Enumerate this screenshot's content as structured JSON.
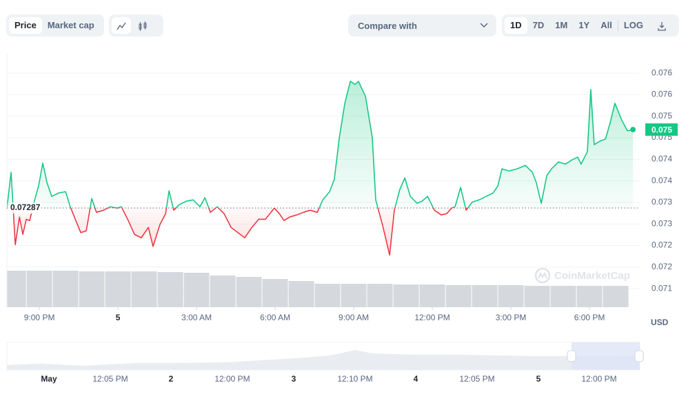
{
  "toolbar": {
    "tabs": [
      "Price",
      "Market cap"
    ],
    "compare": "Compare with",
    "ranges": [
      "1D",
      "7D",
      "1M",
      "1Y",
      "All"
    ],
    "scale": "LOG"
  },
  "watermark": "CoinMarketCap",
  "chart_data": {
    "type": "line",
    "currency": "USD",
    "xlim": [
      -4.24,
      19.92
    ],
    "xticks": [
      {
        "value": -3,
        "label": "9:00 PM"
      },
      {
        "value": 0,
        "label": "5"
      },
      {
        "value": 3,
        "label": "3:00 AM"
      },
      {
        "value": 6,
        "label": "6:00 AM"
      },
      {
        "value": 9,
        "label": "9:00 AM"
      },
      {
        "value": 12,
        "label": "12:00 PM"
      },
      {
        "value": 15,
        "label": "3:00 PM"
      },
      {
        "value": 18,
        "label": "6:00 PM"
      }
    ],
    "ylim": [
      0.07057,
      0.07645
    ],
    "yticks": [
      {
        "value": 0.071,
        "label": "0.071"
      },
      {
        "value": 0.0715,
        "label": "0.072"
      },
      {
        "value": 0.072,
        "label": "0.072"
      },
      {
        "value": 0.0725,
        "label": "0.073"
      },
      {
        "value": 0.073,
        "label": "0.073"
      },
      {
        "value": 0.0735,
        "label": "0.074"
      },
      {
        "value": 0.074,
        "label": "0.074"
      },
      {
        "value": 0.0745,
        "label": "0.075"
      },
      {
        "value": 0.075,
        "label": "0.075"
      },
      {
        "value": 0.0755,
        "label": "0.076"
      },
      {
        "value": 0.076,
        "label": "0.076"
      }
    ],
    "grid": true,
    "baseline": {
      "value": 0.07287,
      "label": "0.07287"
    },
    "price_tag": {
      "value": 0.07469,
      "label": "0.075"
    },
    "series": [
      {
        "color": "#16c784",
        "down_color": "#ea3943",
        "x": [
          -4.24,
          -4.08,
          -3.92,
          -3.76,
          -3.63,
          -3.5,
          -3.37,
          -3.18,
          -3.03,
          -2.87,
          -2.71,
          -2.53,
          -2.26,
          -2,
          -1.82,
          -1.61,
          -1.42,
          -1.21,
          -1,
          -0.82,
          -0.55,
          -0.29,
          -0.03,
          0.13,
          0.37,
          0.63,
          0.89,
          1.16,
          1.34,
          1.61,
          1.82,
          1.95,
          2.13,
          2.34,
          2.61,
          2.87,
          3.13,
          3.32,
          3.53,
          3.79,
          4.05,
          4.32,
          4.58,
          4.84,
          5.11,
          5.37,
          5.63,
          5.97,
          6.16,
          6.34,
          6.55,
          6.82,
          7.08,
          7.34,
          7.61,
          7.82,
          8.08,
          8.26,
          8.45,
          8.66,
          8.87,
          9.05,
          9.18,
          9.45,
          9.71,
          9.84,
          10.11,
          10.37,
          10.55,
          10.76,
          10.95,
          11.16,
          11.42,
          11.61,
          11.82,
          12.08,
          12.34,
          12.55,
          12.74,
          12.87,
          13.08,
          13.29,
          13.53,
          13.79,
          14.05,
          14.32,
          14.5,
          14.66,
          14.92,
          15.24,
          15.55,
          15.82,
          15.97,
          16.16,
          16.37,
          16.55,
          16.82,
          17.08,
          17.34,
          17.55,
          17.68,
          17.92,
          18.05,
          18.18,
          18.39,
          18.61,
          18.79,
          18.97,
          19.24,
          19.45,
          19.66
        ],
        "values": [
          0.07285,
          0.0737,
          0.07202,
          0.07266,
          0.07226,
          0.07261,
          0.07258,
          0.07306,
          0.07338,
          0.07391,
          0.07346,
          0.07314,
          0.07322,
          0.07325,
          0.0729,
          0.07258,
          0.0723,
          0.07234,
          0.07309,
          0.07277,
          0.07282,
          0.0729,
          0.07287,
          0.0729,
          0.07261,
          0.07226,
          0.07218,
          0.07242,
          0.07198,
          0.0725,
          0.07274,
          0.07327,
          0.07282,
          0.07295,
          0.07303,
          0.07306,
          0.0729,
          0.07311,
          0.07277,
          0.0729,
          0.07274,
          0.07242,
          0.0723,
          0.07218,
          0.07242,
          0.07261,
          0.07261,
          0.07287,
          0.07274,
          0.07258,
          0.07266,
          0.07271,
          0.07277,
          0.07282,
          0.07277,
          0.07306,
          0.07325,
          0.07354,
          0.0745,
          0.0753,
          0.07581,
          0.07574,
          0.07581,
          0.07546,
          0.0745,
          0.07306,
          0.07245,
          0.07178,
          0.07282,
          0.0733,
          0.07357,
          0.07314,
          0.07298,
          0.07303,
          0.07314,
          0.07282,
          0.07271,
          0.07274,
          0.07287,
          0.0729,
          0.07335,
          0.07282,
          0.07301,
          0.07306,
          0.07314,
          0.07322,
          0.07338,
          0.07378,
          0.07373,
          0.07378,
          0.07386,
          0.0737,
          0.07346,
          0.07298,
          0.07362,
          0.07378,
          0.07394,
          0.07389,
          0.07399,
          0.07405,
          0.07389,
          0.07418,
          0.07562,
          0.07434,
          0.07442,
          0.07447,
          0.07485,
          0.0753,
          0.0749,
          0.07466,
          0.07469
        ]
      }
    ],
    "volume": {
      "color": "#d5d8dd",
      "lim": [
        0,
        100
      ],
      "x": [
        -4,
        -3,
        -2,
        -1,
        0,
        1,
        2,
        3,
        4,
        5,
        6,
        7,
        8,
        9,
        10,
        11,
        12,
        13,
        14,
        15,
        16,
        17,
        18,
        19
      ],
      "values": [
        53,
        53,
        53,
        52,
        52,
        52,
        51,
        50,
        46,
        44,
        41,
        38,
        34,
        34,
        34,
        33,
        33,
        32,
        32,
        32,
        31,
        31,
        31,
        31
      ]
    }
  },
  "navigator": {
    "labels": [
      "May",
      "12:05 PM",
      "2",
      "12:00 PM",
      "3",
      "12:10 PM",
      "4",
      "12:05 PM",
      "5",
      "12:00 PM"
    ]
  }
}
